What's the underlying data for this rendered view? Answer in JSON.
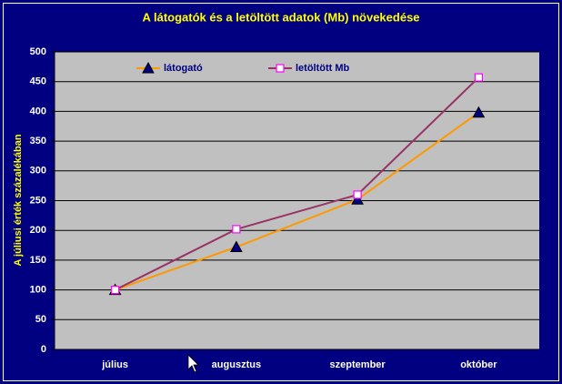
{
  "chart_data": {
    "type": "line",
    "title": "A látogatók és a letöltött adatok (Mb) növekedése",
    "y_label": "A júliusi érték százalékában",
    "categories": [
      "július",
      "augusztus",
      "szeptember",
      "október"
    ],
    "series": [
      {
        "name": "látogató",
        "color": "#ff9900",
        "marker": "triangle",
        "marker_color": "#000080",
        "values": [
          100,
          172,
          252,
          398
        ]
      },
      {
        "name": "letöltött Mb",
        "color": "#993366",
        "marker": "square",
        "marker_color": "#ff00ff",
        "values": [
          100,
          202,
          260,
          457
        ]
      }
    ],
    "ylim": [
      0,
      500
    ],
    "yticks": [
      0,
      50,
      100,
      150,
      200,
      250,
      300,
      350,
      400,
      450,
      500
    ],
    "grid": true,
    "legend": "top"
  }
}
